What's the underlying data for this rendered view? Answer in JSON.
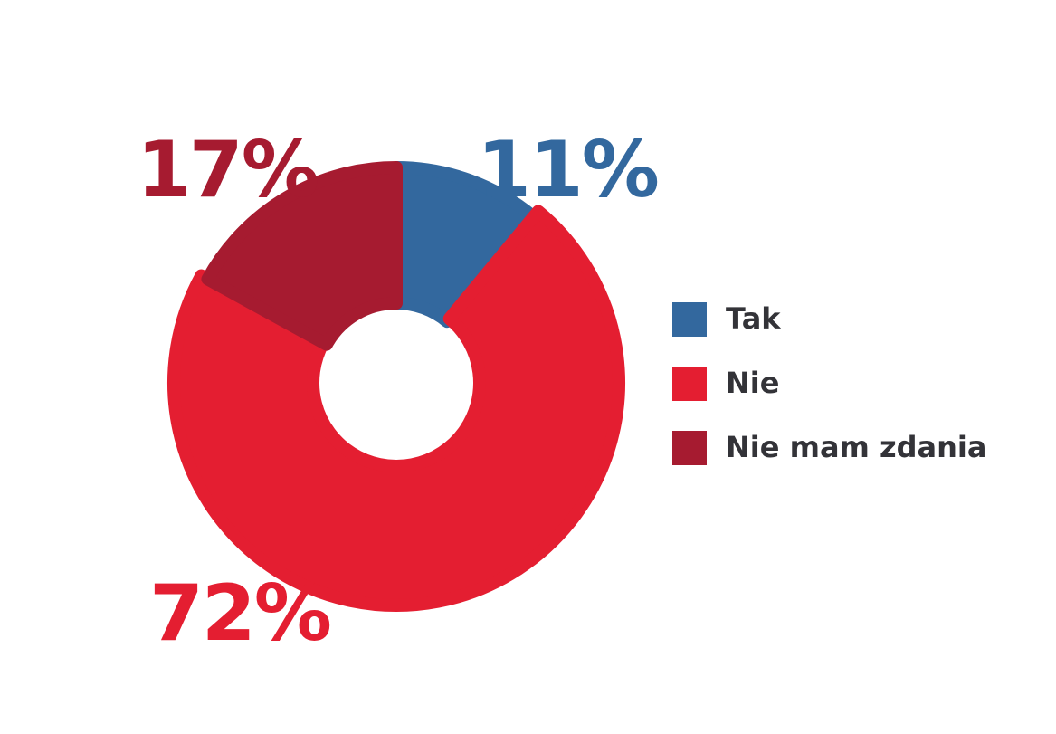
{
  "chart_data": {
    "type": "pie",
    "variant": "donut",
    "start_angle_deg": 0,
    "direction": "clockwise",
    "legend_position": "right",
    "categories": [
      "Tak",
      "Nie",
      "Nie mam zdania"
    ],
    "values": [
      11,
      72,
      17
    ],
    "value_labels": [
      "11%",
      "72%",
      "17%"
    ],
    "colors": [
      "#33689E",
      "#E41E31",
      "#A61B30"
    ],
    "title": "",
    "xlabel": "",
    "ylabel": ""
  }
}
